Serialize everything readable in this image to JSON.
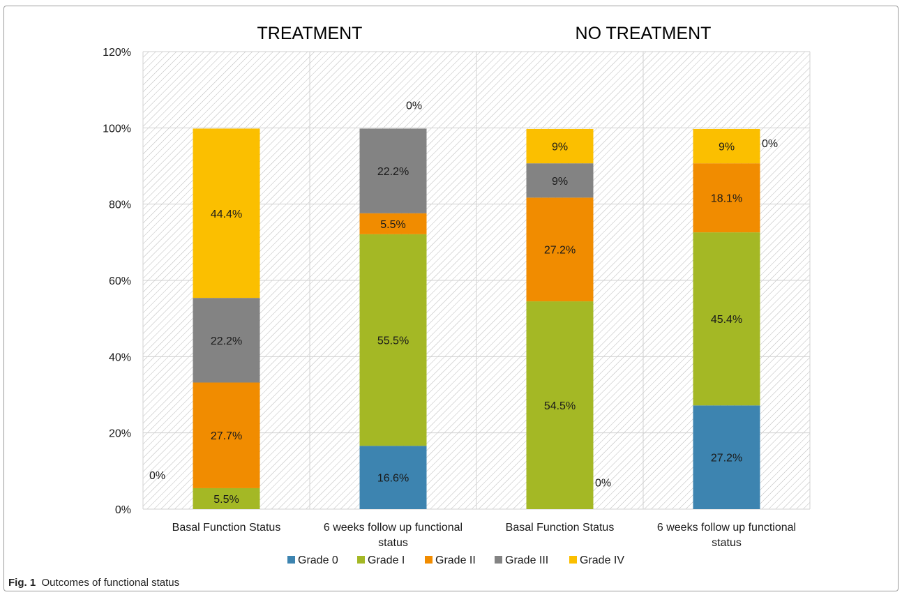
{
  "chart_data": {
    "type": "bar",
    "stacked": true,
    "group_titles": [
      "TREATMENT",
      "NO TREATMENT"
    ],
    "categories": [
      "Basal Function Status",
      "6 weeks follow up functional status",
      "Basal Function Status",
      "6 weeks follow up functional status"
    ],
    "category_lines": [
      [
        "Basal Function Status"
      ],
      [
        "6 weeks follow up functional",
        "status"
      ],
      [
        "Basal Function Status"
      ],
      [
        "6 weeks follow up functional",
        "status"
      ]
    ],
    "series": [
      {
        "name": "Grade 0",
        "color": "#3d84b0",
        "values": [
          0,
          16.6,
          0,
          27.2
        ],
        "labels": [
          "0%",
          "16.6%",
          "0%",
          "27.2%"
        ]
      },
      {
        "name": "Grade I",
        "color": "#a4b825",
        "values": [
          5.5,
          55.5,
          54.5,
          45.4
        ],
        "labels": [
          "5.5%",
          "55.5%",
          "54.5%",
          "45.4%"
        ]
      },
      {
        "name": "Grade II",
        "color": "#f18c00",
        "values": [
          27.7,
          5.5,
          27.2,
          18.1
        ],
        "labels": [
          "27.7%",
          "5.5%",
          "27.2%",
          "18.1%"
        ]
      },
      {
        "name": "Grade III",
        "color": "#838383",
        "values": [
          22.2,
          22.2,
          9,
          0
        ],
        "labels": [
          "22.2%",
          "22.2%",
          "9%",
          "0%"
        ]
      },
      {
        "name": "Grade IV",
        "color": "#fbbf00",
        "values": [
          44.4,
          0,
          9,
          9
        ],
        "labels": [
          "44.4%",
          "0%",
          "9%",
          "9%"
        ]
      }
    ],
    "y_ticks": [
      "0%",
      "20%",
      "40%",
      "60%",
      "80%",
      "100%",
      "120%"
    ],
    "ylim": [
      0,
      120
    ],
    "legend_position": "bottom",
    "grid": true
  },
  "caption": {
    "fig_label": "Fig. 1",
    "text": "Outcomes of functional status"
  }
}
